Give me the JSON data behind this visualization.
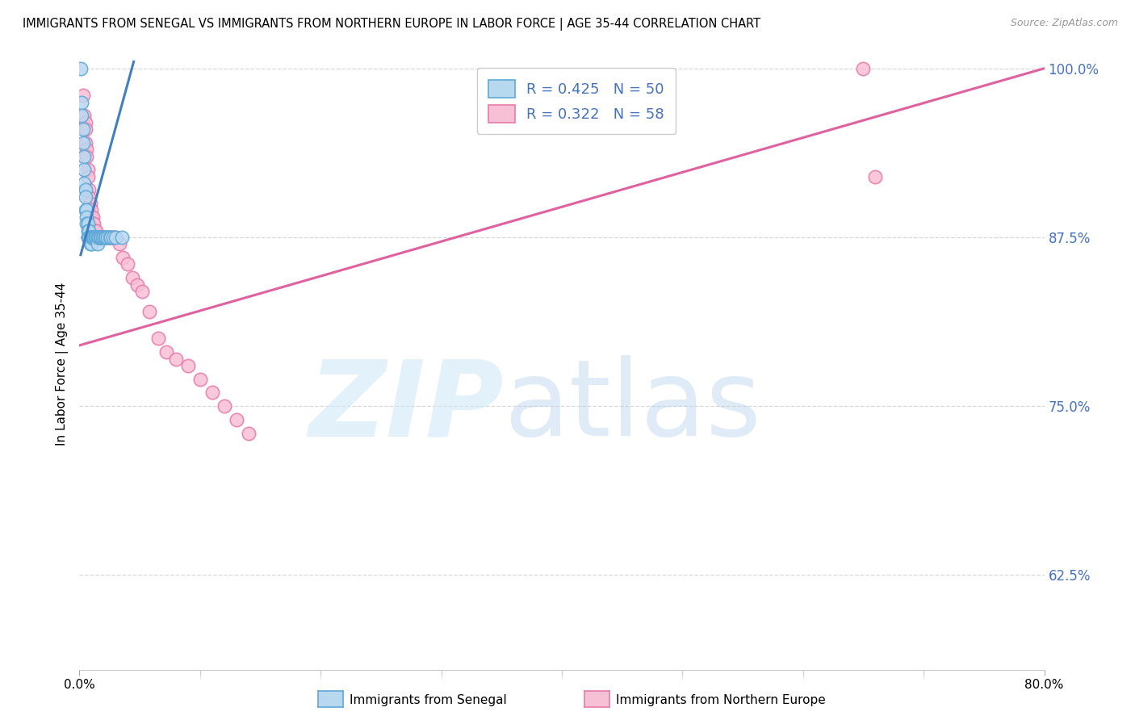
{
  "title": "IMMIGRANTS FROM SENEGAL VS IMMIGRANTS FROM NORTHERN EUROPE IN LABOR FORCE | AGE 35-44 CORRELATION CHART",
  "source": "Source: ZipAtlas.com",
  "ylabel": "In Labor Force | Age 35-44",
  "R_blue": 0.425,
  "N_blue": 50,
  "R_pink": 0.322,
  "N_pink": 58,
  "xmin": 0.0,
  "xmax": 0.8,
  "ymin": 0.555,
  "ymax": 1.008,
  "yticks": [
    0.625,
    0.75,
    0.875,
    1.0
  ],
  "yticklabels": [
    "62.5%",
    "75.0%",
    "87.5%",
    "100.0%"
  ],
  "xticks": [
    0.0,
    0.1,
    0.2,
    0.3,
    0.4,
    0.5,
    0.6,
    0.7,
    0.8
  ],
  "xticklabels": [
    "0.0%",
    "",
    "",
    "",
    "",
    "",
    "",
    "",
    "80.0%"
  ],
  "blue_scatter_x": [
    0.001,
    0.002,
    0.002,
    0.003,
    0.003,
    0.004,
    0.004,
    0.004,
    0.005,
    0.005,
    0.005,
    0.006,
    0.006,
    0.006,
    0.007,
    0.007,
    0.007,
    0.008,
    0.008,
    0.008,
    0.009,
    0.009,
    0.01,
    0.01,
    0.01,
    0.011,
    0.011,
    0.012,
    0.012,
    0.013,
    0.013,
    0.014,
    0.014,
    0.015,
    0.015,
    0.016,
    0.016,
    0.017,
    0.018,
    0.018,
    0.019,
    0.02,
    0.021,
    0.022,
    0.023,
    0.025,
    0.026,
    0.028,
    0.03,
    0.035
  ],
  "blue_scatter_y": [
    1.0,
    0.975,
    0.965,
    0.955,
    0.945,
    0.935,
    0.925,
    0.915,
    0.91,
    0.905,
    0.895,
    0.895,
    0.89,
    0.885,
    0.885,
    0.88,
    0.875,
    0.88,
    0.875,
    0.875,
    0.875,
    0.87,
    0.875,
    0.87,
    0.875,
    0.875,
    0.875,
    0.875,
    0.875,
    0.875,
    0.875,
    0.875,
    0.875,
    0.875,
    0.87,
    0.875,
    0.875,
    0.875,
    0.875,
    0.875,
    0.875,
    0.875,
    0.875,
    0.875,
    0.875,
    0.875,
    0.875,
    0.875,
    0.875,
    0.875
  ],
  "pink_scatter_x": [
    0.003,
    0.004,
    0.005,
    0.005,
    0.005,
    0.006,
    0.006,
    0.007,
    0.007,
    0.008,
    0.008,
    0.009,
    0.01,
    0.01,
    0.011,
    0.011,
    0.012,
    0.012,
    0.013,
    0.014,
    0.015,
    0.016,
    0.017,
    0.018,
    0.02,
    0.022,
    0.024,
    0.026,
    0.028,
    0.03,
    0.033,
    0.036,
    0.04,
    0.044,
    0.048,
    0.052,
    0.058,
    0.065,
    0.072,
    0.08,
    0.09,
    0.1,
    0.11,
    0.12,
    0.13,
    0.14,
    0.65,
    0.66,
    0.007,
    0.008,
    0.009,
    0.01,
    0.011,
    0.013,
    0.015,
    0.018,
    0.021,
    0.025
  ],
  "pink_scatter_y": [
    0.98,
    0.965,
    0.96,
    0.955,
    0.945,
    0.94,
    0.935,
    0.925,
    0.92,
    0.91,
    0.905,
    0.9,
    0.895,
    0.89,
    0.89,
    0.885,
    0.885,
    0.88,
    0.88,
    0.88,
    0.875,
    0.875,
    0.875,
    0.875,
    0.875,
    0.875,
    0.875,
    0.875,
    0.875,
    0.875,
    0.87,
    0.86,
    0.855,
    0.845,
    0.84,
    0.835,
    0.82,
    0.8,
    0.79,
    0.785,
    0.78,
    0.77,
    0.76,
    0.75,
    0.74,
    0.73,
    1.0,
    0.92,
    0.875,
    0.875,
    0.875,
    0.875,
    0.875,
    0.875,
    0.875,
    0.875,
    0.875,
    0.875
  ],
  "blue_line_x": [
    0.001,
    0.045
  ],
  "blue_line_y": [
    0.862,
    1.005
  ],
  "pink_line_x": [
    0.0,
    0.8
  ],
  "pink_line_y": [
    0.795,
    1.0
  ],
  "blue_edge_color": "#5fa8d8",
  "blue_face_color": "#b8d8f0",
  "pink_edge_color": "#e87aaa",
  "pink_face_color": "#f8c0d5",
  "blue_line_color": "#4080c0",
  "pink_line_color": "#e060a0",
  "grid_color": "#d8d8d8",
  "tick_label_color": "#4472c4",
  "background_color": "#ffffff",
  "title_fontsize": 10.5,
  "source_fontsize": 9,
  "legend_fontsize": 13,
  "ylabel_fontsize": 11
}
